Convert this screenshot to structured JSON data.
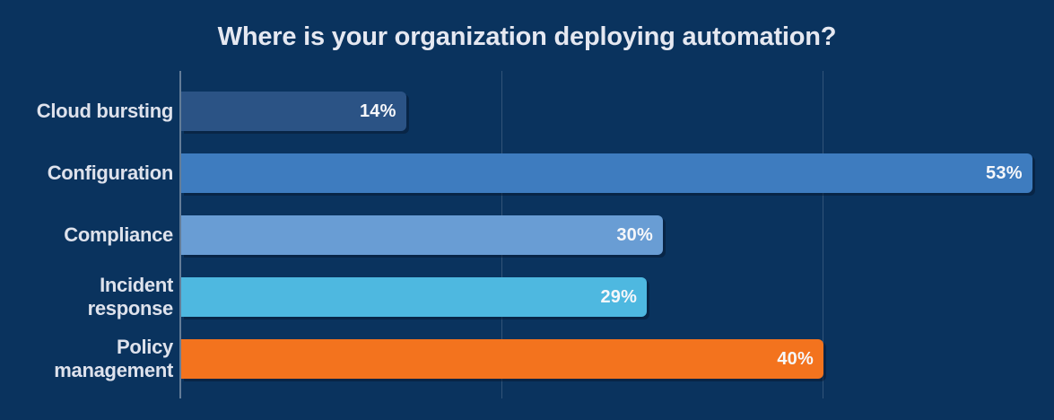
{
  "chart_data": {
    "type": "bar",
    "orientation": "horizontal",
    "title": "Where is your organization deploying automation?",
    "categories": [
      "Cloud bursting",
      "Configuration",
      "Compliance",
      "Incident response",
      "Policy management"
    ],
    "values": [
      14,
      53,
      30,
      29,
      40
    ],
    "value_labels": [
      "14%",
      "53%",
      "30%",
      "29%",
      "40%"
    ],
    "bar_colors": [
      "#2B5385",
      "#3E7CBF",
      "#699DD4",
      "#4EB8E0",
      "#F3731E"
    ],
    "xlim": [
      0,
      54
    ],
    "gridlines_pct": [
      20,
      40
    ],
    "grid": "vertical-lines-only",
    "legend": "none",
    "colors": {
      "background": "#0A335E",
      "title_text": "#E5E8F1",
      "label_text": "#DEE2EC",
      "value_text": "#F6F7FA",
      "axis_line": "rgba(173,184,199,0.55)",
      "gridline": "rgba(173,184,199,0.25)"
    }
  }
}
